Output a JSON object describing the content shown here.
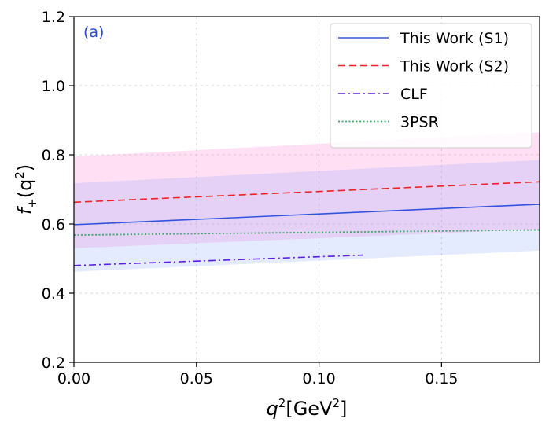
{
  "chart_data": {
    "type": "line",
    "panel_label": "(a)",
    "xlabel": {
      "base": "q",
      "sup": "2",
      "unit_open": "[GeV",
      "unit_sup": "2",
      "unit_close": "]"
    },
    "ylabel": {
      "base": "f",
      "sub": "+",
      "open": "(q",
      "sup": "2",
      "close": ")"
    },
    "xlim": [
      0,
      0.19
    ],
    "ylim": [
      0.2,
      1.2
    ],
    "xticks": [
      0.0,
      0.05,
      0.1,
      0.15
    ],
    "xtick_labels": [
      "0.00",
      "0.05",
      "0.10",
      "0.15"
    ],
    "yticks": [
      0.2,
      0.4,
      0.6,
      0.8,
      1.0,
      1.2
    ],
    "ytick_labels": [
      "0.2",
      "0.4",
      "0.6",
      "0.8",
      "1.0",
      "1.2"
    ],
    "grid": true,
    "legend_position": "top-right",
    "bands": [
      {
        "name": "This Work (S2) uncertainty",
        "color": "#ff6ec7",
        "opacity": 0.22,
        "x": [
          0,
          0.19
        ],
        "lower": [
          0.53,
          0.585
        ],
        "upper": [
          0.795,
          0.865
        ]
      },
      {
        "name": "This Work (S1) uncertainty",
        "color": "#7b9cff",
        "opacity": 0.2,
        "x": [
          0,
          0.19
        ],
        "lower": [
          0.462,
          0.523
        ],
        "upper": [
          0.718,
          0.785
        ]
      }
    ],
    "series": [
      {
        "name": "This Work (S1)",
        "color": "#3355dd",
        "style": "solid",
        "x": [
          0,
          0.19
        ],
        "y": [
          0.598,
          0.657
        ]
      },
      {
        "name": "This Work (S2)",
        "color": "#ee2222",
        "style": "dashed",
        "x": [
          0,
          0.19
        ],
        "y": [
          0.663,
          0.722
        ]
      },
      {
        "name": "CLF",
        "color": "#5a1ee8",
        "style": "dashdot",
        "x": [
          0,
          0.118
        ],
        "y": [
          0.48,
          0.51
        ]
      },
      {
        "name": "3PSR",
        "color": "#3daa6a",
        "style": "dotted",
        "x": [
          0,
          0.19
        ],
        "y": [
          0.568,
          0.583
        ]
      }
    ]
  }
}
